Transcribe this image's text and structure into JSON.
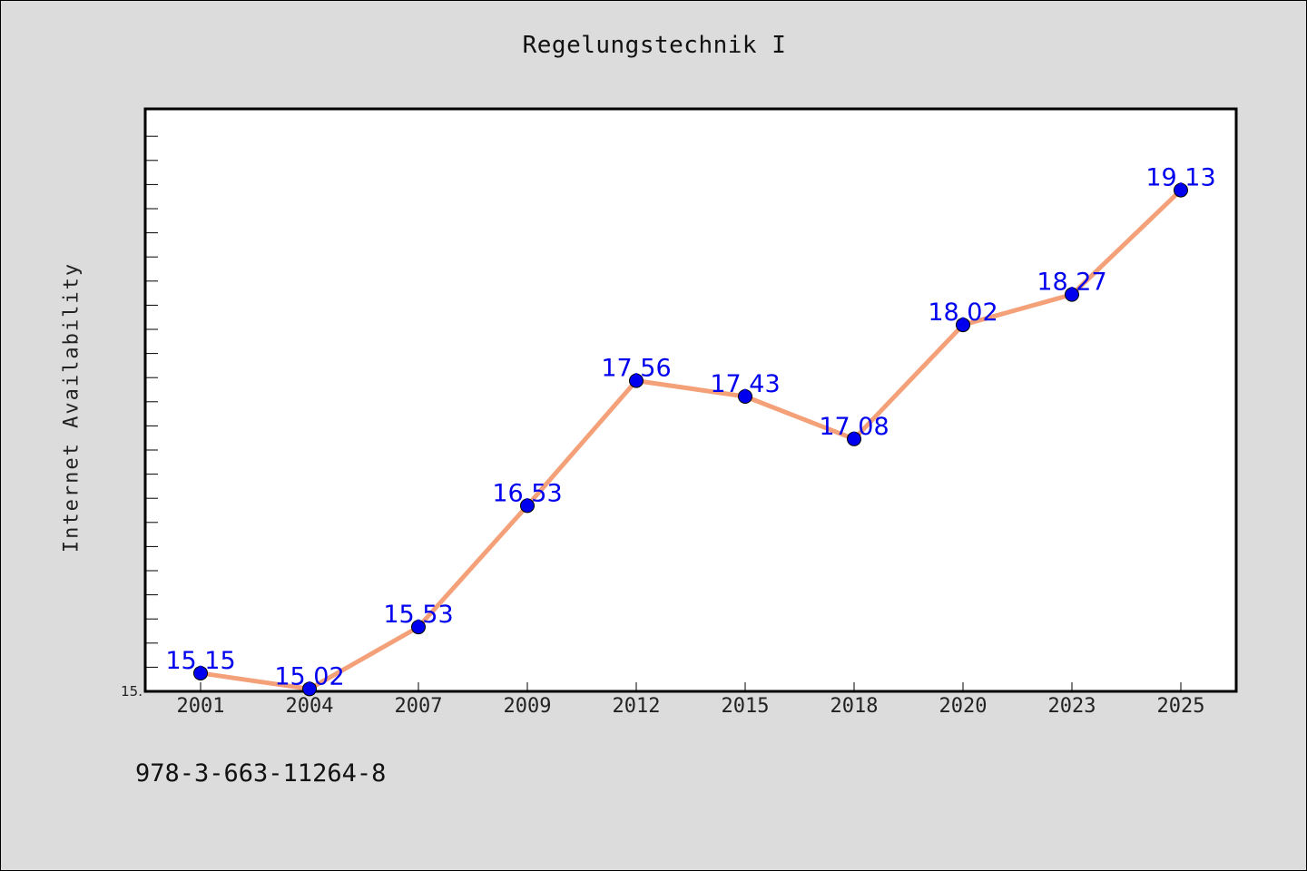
{
  "chart_data": {
    "type": "line",
    "title": "Regelungstechnik I",
    "xlabel": "",
    "ylabel": "Internet Availability",
    "categories": [
      "2001",
      "2004",
      "2007",
      "2009",
      "2012",
      "2015",
      "2018",
      "2020",
      "2023",
      "2025"
    ],
    "series": [
      {
        "values": [
          15.15,
          15.02,
          15.53,
          16.53,
          17.56,
          17.43,
          17.08,
          18.02,
          18.27,
          19.13
        ],
        "labels": [
          "15.15",
          "15.02",
          "15.53",
          "16.53",
          "17.56",
          "17.43",
          "17.08",
          "18.02",
          "18.27",
          "19.13"
        ]
      }
    ],
    "ylim": [
      15.0,
      19.8
    ],
    "y_tick_labels": [
      "15."
    ],
    "grid": false,
    "line_color": "#f4a078",
    "marker_color": "#0000ee",
    "label_color": "#0000ee"
  },
  "footer": {
    "isbn": "978-3-663-11264-8"
  }
}
